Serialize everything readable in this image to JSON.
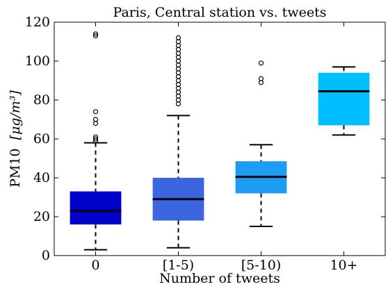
{
  "chart_data": {
    "type": "box",
    "title": "Paris, Central station vs. tweets",
    "xlabel": "Number of tweets",
    "ylabel": "PM10",
    "ylabel_unit": "[μg/m³]",
    "categories": [
      "0",
      "[1-5)",
      "[5-10)",
      "10+"
    ],
    "ylim": [
      0,
      120
    ],
    "yticks": [
      0,
      20,
      40,
      60,
      80,
      100,
      120
    ],
    "grid": false,
    "boxes": [
      {
        "category": "0",
        "whisker_low": 3,
        "q1": 16,
        "median": 23,
        "q3": 33,
        "whisker_high": 58,
        "outliers": [
          59,
          60,
          61,
          68,
          70,
          74,
          113,
          114
        ],
        "color": "#0000cc"
      },
      {
        "category": "[1-5)",
        "whisker_low": 4,
        "q1": 18,
        "median": 29,
        "q3": 40,
        "whisker_high": 72,
        "outliers": [
          78,
          80,
          82,
          84,
          86,
          88,
          90,
          92,
          94,
          96,
          98,
          100,
          102,
          104,
          106,
          108,
          110,
          112
        ],
        "color": "#3b66e0"
      },
      {
        "category": "[5-10)",
        "whisker_low": 15,
        "q1": 32,
        "median": 40.5,
        "q3": 48.5,
        "whisker_high": 57,
        "outliers": [
          89,
          91,
          99
        ],
        "color": "#1e9bf2"
      },
      {
        "category": "10+",
        "whisker_low": 62,
        "q1": 67,
        "median": 84.5,
        "q3": 94,
        "whisker_high": 97,
        "outliers": [],
        "color": "#00bfff"
      }
    ]
  }
}
